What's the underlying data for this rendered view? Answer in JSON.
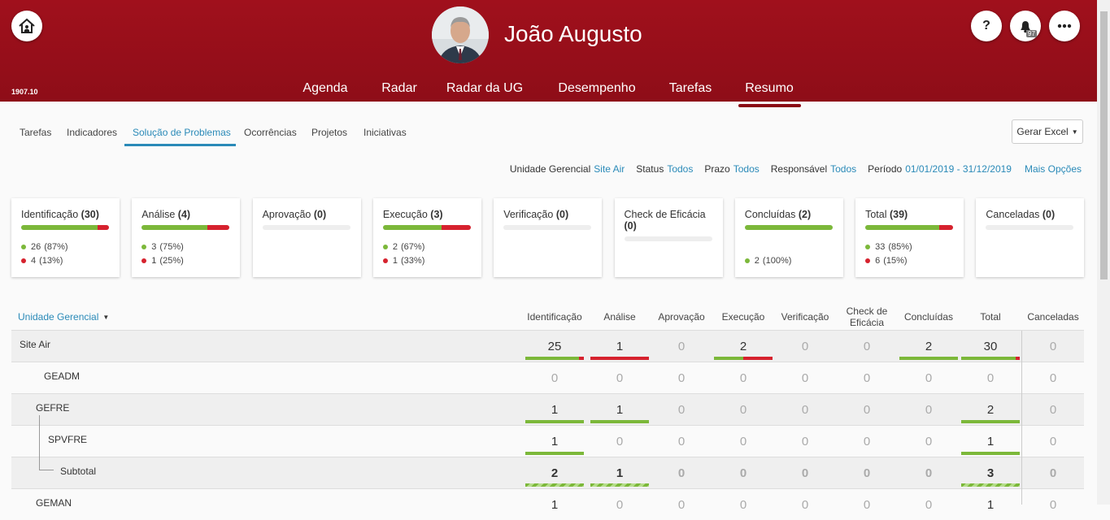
{
  "header": {
    "user_name": "João Augusto",
    "version": "1907.10",
    "help_label": "?",
    "notifications": "97",
    "nav": [
      "Agenda",
      "Radar",
      "Radar da UG",
      "Desempenho",
      "Tarefas",
      "Resumo"
    ]
  },
  "tabs": [
    "Tarefas",
    "Indicadores",
    "Solução de Problemas",
    "Ocorrências",
    "Projetos",
    "Iniciativas"
  ],
  "export_button": "Gerar Excel",
  "filters": [
    {
      "label": "Unidade Gerencial",
      "value": "Site Air"
    },
    {
      "label": "Status",
      "value": "Todos"
    },
    {
      "label": "Prazo",
      "value": "Todos"
    },
    {
      "label": "Responsável",
      "value": "Todos"
    },
    {
      "label": "Período",
      "value": "01/01/2019 - 31/12/2019"
    }
  ],
  "more_options": "Mais Opções",
  "cards": [
    {
      "title": "Identificação",
      "count": "(30)",
      "ok": 26,
      "ok_pct": "(87%)",
      "late": 4,
      "late_pct": "(13%)"
    },
    {
      "title": "Análise",
      "count": "(4)",
      "ok": 3,
      "ok_pct": "(75%)",
      "late": 1,
      "late_pct": "(25%)"
    },
    {
      "title": "Aprovação",
      "count": "(0)"
    },
    {
      "title": "Execução",
      "count": "(3)",
      "ok": 2,
      "ok_pct": "(67%)",
      "late": 1,
      "late_pct": "(33%)"
    },
    {
      "title": "Verificação",
      "count": "(0)"
    },
    {
      "title": "Check de Eficácia",
      "count": "(0)"
    },
    {
      "title": "Concluídas",
      "count": "(2)",
      "ok": 2,
      "ok_pct": "(100%)"
    },
    {
      "title": "Total",
      "count": "(39)",
      "ok": 33,
      "ok_pct": "(85%)",
      "late": 6,
      "late_pct": "(15%)"
    },
    {
      "title": "Canceladas",
      "count": "(0)"
    }
  ],
  "table": {
    "unit_header": "Unidade Gerencial",
    "columns": [
      "Identificação",
      "Análise",
      "Aprovação",
      "Execução",
      "Verificação",
      "Check de Eficácia",
      "Concluídas",
      "Total",
      "Canceladas"
    ],
    "rows": [
      {
        "name": "Site Air",
        "values": [
          25,
          1,
          0,
          2,
          0,
          0,
          2,
          30,
          0
        ]
      },
      {
        "name": "GEADM",
        "values": [
          0,
          0,
          0,
          0,
          0,
          0,
          0,
          0,
          0
        ]
      },
      {
        "name": "GEFRE",
        "values": [
          1,
          1,
          0,
          0,
          0,
          0,
          0,
          2,
          0
        ]
      },
      {
        "name": "SPVFRE",
        "values": [
          1,
          0,
          0,
          0,
          0,
          0,
          0,
          1,
          0
        ]
      },
      {
        "name": "Subtotal",
        "values": [
          2,
          1,
          0,
          0,
          0,
          0,
          0,
          3,
          0
        ]
      },
      {
        "name": "GEMAN",
        "values": [
          1,
          0,
          0,
          0,
          0,
          0,
          0,
          1,
          0
        ]
      }
    ]
  }
}
